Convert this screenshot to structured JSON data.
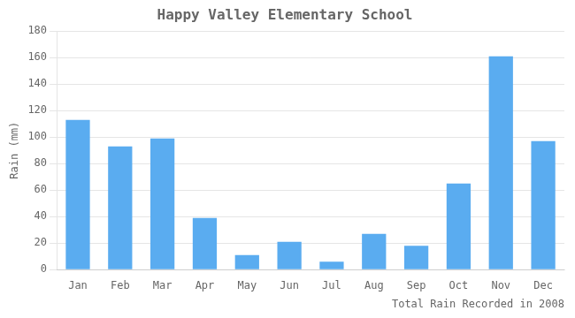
{
  "chart_data": {
    "type": "bar",
    "title": "Happy Valley Elementary School",
    "xlabel": "Total Rain Recorded in 2008",
    "ylabel": "Rain (mm)",
    "categories": [
      "Jan",
      "Feb",
      "Mar",
      "Apr",
      "May",
      "Jun",
      "Jul",
      "Aug",
      "Sep",
      "Oct",
      "Nov",
      "Dec"
    ],
    "values": [
      113,
      93,
      99,
      39,
      11,
      21,
      6,
      27,
      18,
      65,
      161,
      97
    ],
    "color": "#5aacf0",
    "ylim": [
      0,
      180
    ],
    "yticks": [
      0,
      20,
      40,
      60,
      80,
      100,
      120,
      140,
      160,
      180
    ],
    "grid": true
  }
}
